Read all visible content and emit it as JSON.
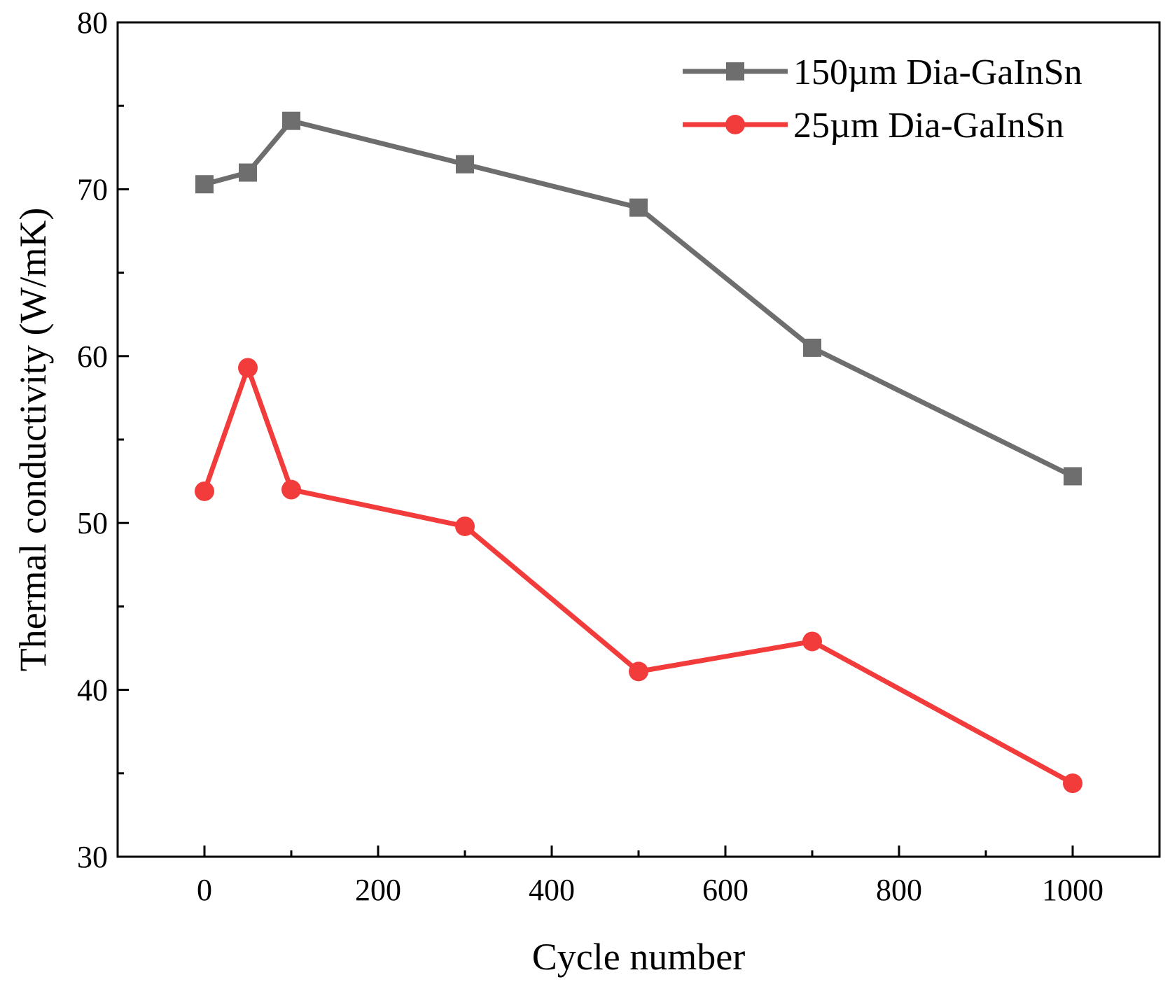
{
  "chart_data": {
    "type": "line",
    "title": "",
    "xlabel": "Cycle number",
    "ylabel": "Thermal conductivity (W/mK)",
    "xlim": [
      -100,
      1100
    ],
    "ylim": [
      30,
      80
    ],
    "xticks": [
      0,
      200,
      400,
      600,
      800,
      1000
    ],
    "xtick_labels": [
      "0",
      "200",
      "400",
      "600",
      "800",
      "1000"
    ],
    "yticks": [
      30,
      40,
      50,
      60,
      70,
      80
    ],
    "ytick_labels": [
      "30",
      "40",
      "50",
      "60",
      "70",
      "80"
    ],
    "legend_position": "top-right",
    "series": [
      {
        "name": "150µm  Dia-GaInSn",
        "color": "#6e6e6e",
        "marker": "square",
        "x": [
          0,
          50,
          100,
          300,
          500,
          700,
          1000
        ],
        "y": [
          70.3,
          71.0,
          74.1,
          71.5,
          68.9,
          60.5,
          52.8
        ]
      },
      {
        "name": "25µm  Dia-GaInSn",
        "color": "#f23b3b",
        "marker": "circle",
        "x": [
          0,
          50,
          100,
          300,
          500,
          700,
          1000
        ],
        "y": [
          51.9,
          59.3,
          52.0,
          49.8,
          41.1,
          42.9,
          34.4
        ]
      }
    ]
  }
}
